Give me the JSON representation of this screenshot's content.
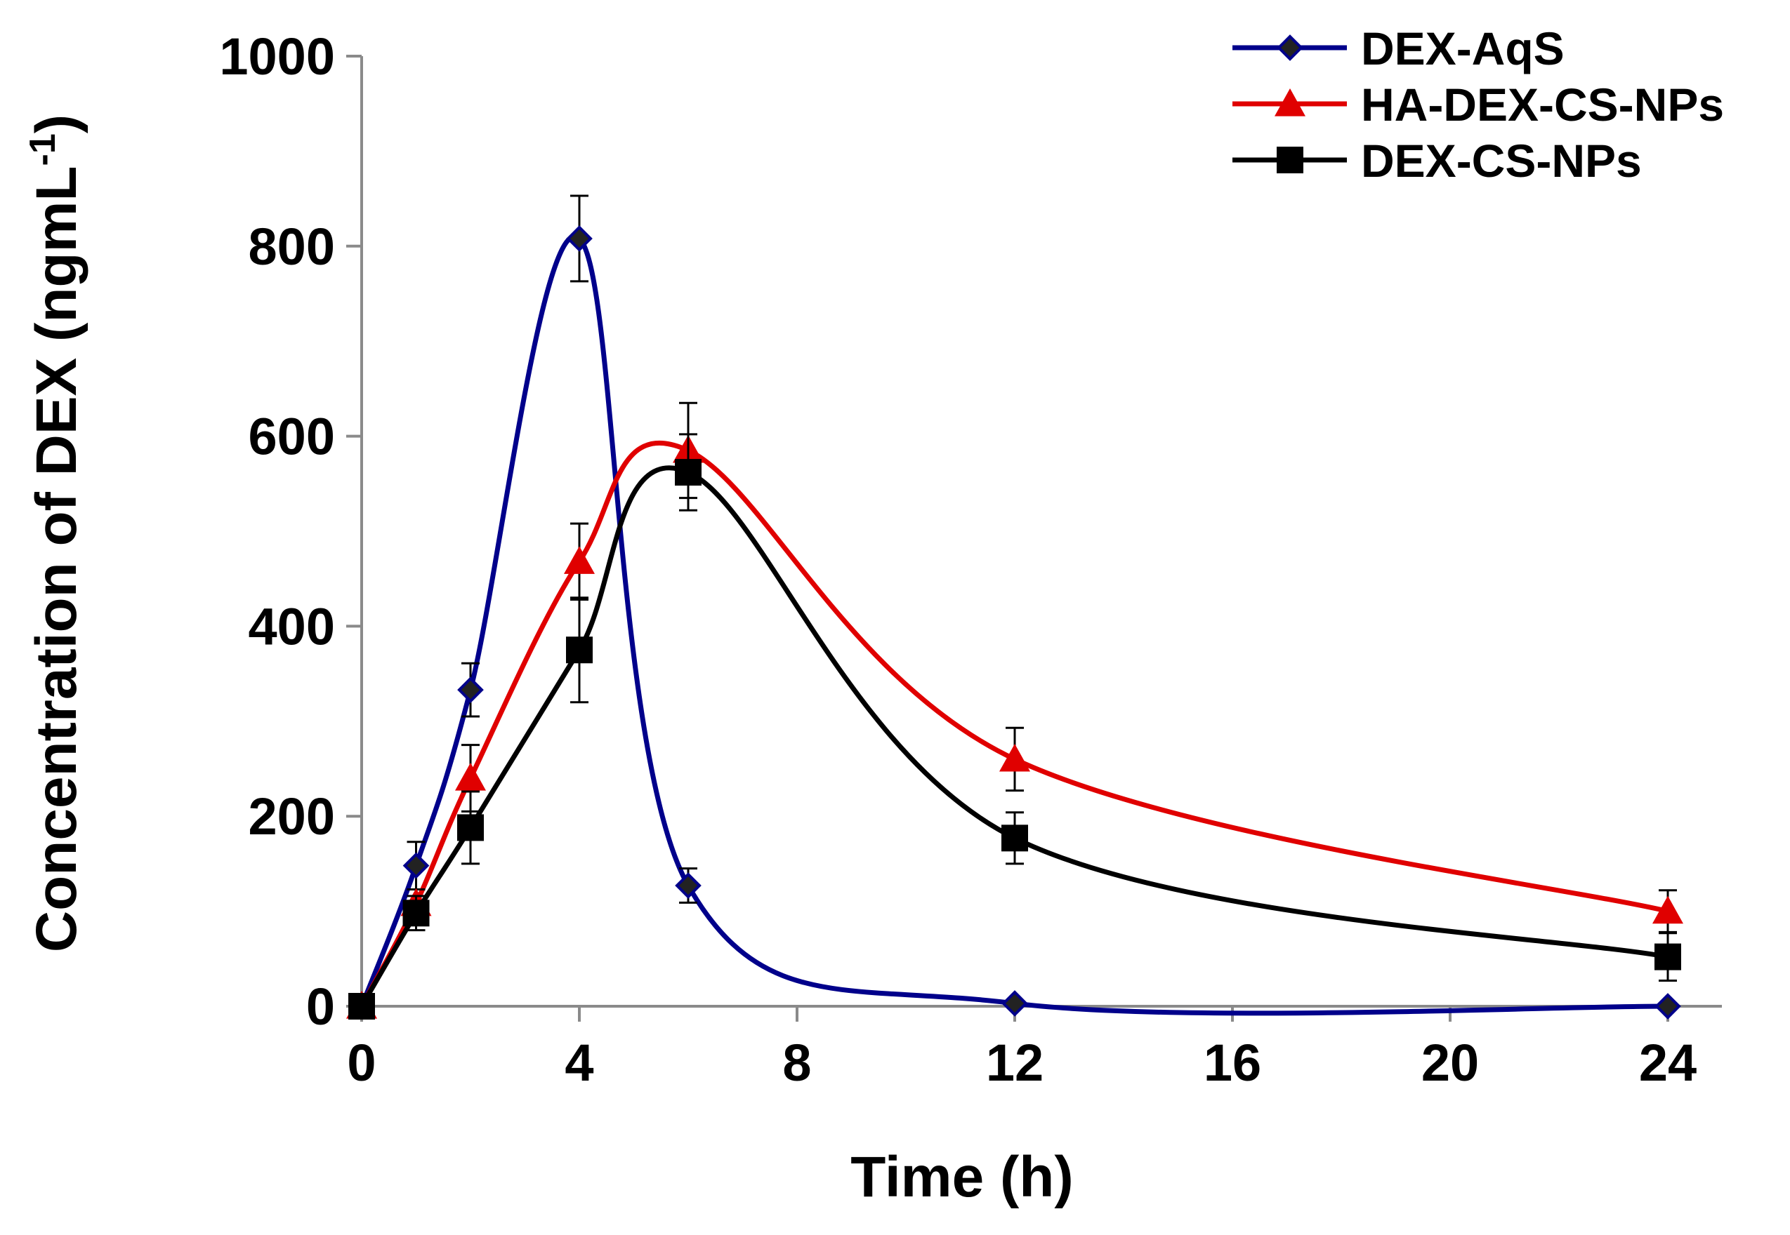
{
  "chart_data": {
    "type": "line",
    "title": "",
    "xlabel": "Time (h)",
    "ylabel": "Concentration of DEX (ngmL",
    "ylabel_superscript": "-1",
    "ylabel_close": ")",
    "xlim": [
      0,
      24
    ],
    "ylim": [
      0,
      1000
    ],
    "xticks": [
      0,
      4,
      8,
      12,
      16,
      20,
      24
    ],
    "yticks": [
      0,
      200,
      400,
      600,
      800,
      1000
    ],
    "grid": false,
    "legend_position": "top-right",
    "x": [
      0,
      1,
      2,
      4,
      6,
      12,
      24
    ],
    "series": [
      {
        "name": "DEX-AqS",
        "color": "#00008B",
        "marker": "diamond",
        "values": [
          0,
          148,
          333,
          808,
          127,
          3,
          0
        ],
        "errors": [
          0,
          25,
          28,
          45,
          18,
          0,
          0
        ]
      },
      {
        "name": "HA-DEX-CS-NPs",
        "color": "#E00000",
        "marker": "triangle",
        "values": [
          0,
          108,
          240,
          468,
          585,
          260,
          100
        ],
        "errors": [
          0,
          15,
          35,
          40,
          50,
          33,
          22
        ]
      },
      {
        "name": "DEX-CS-NPs",
        "color": "#000000",
        "marker": "square",
        "values": [
          0,
          98,
          188,
          375,
          562,
          177,
          52
        ],
        "errors": [
          0,
          18,
          38,
          55,
          40,
          27,
          25
        ]
      }
    ]
  }
}
